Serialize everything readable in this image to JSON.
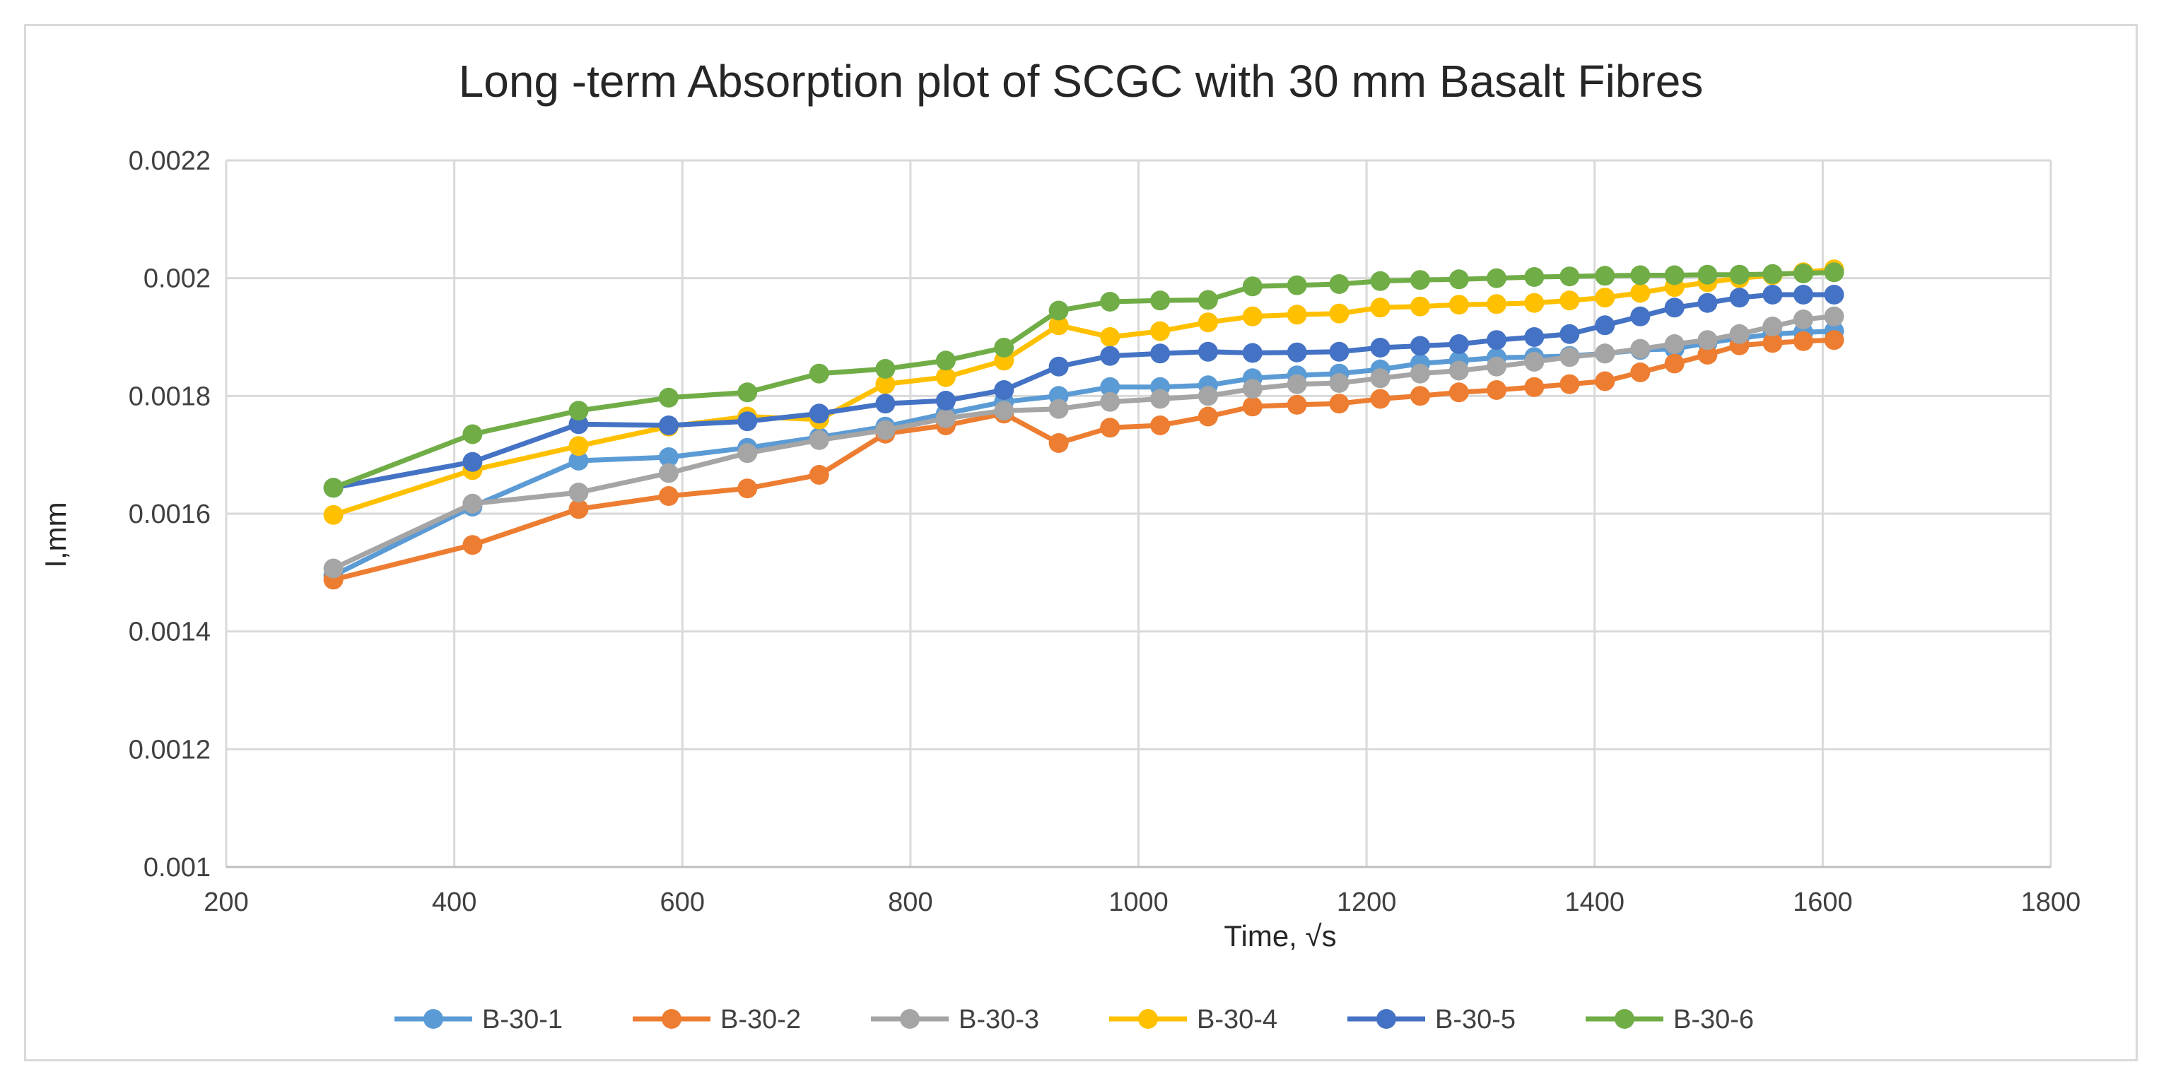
{
  "chart_data": {
    "type": "line",
    "title": "Long -term Absorption plot of SCGC with 30 mm Basalt Fibres",
    "xlabel": "Time, √s",
    "ylabel": "I,mm",
    "xlim": [
      200,
      1800
    ],
    "ylim": [
      0.001,
      0.0022
    ],
    "x_ticks": [
      "200",
      "400",
      "600",
      "800",
      "1000",
      "1200",
      "1400",
      "1600",
      "1800"
    ],
    "y_ticks": [
      "0.001",
      "0.0012",
      "0.0014",
      "0.0016",
      "0.0018",
      "0.002",
      "0.0022"
    ],
    "x_tick_values": [
      200,
      400,
      600,
      800,
      1000,
      1200,
      1400,
      1600,
      1800
    ],
    "y_tick_values": [
      0.001,
      0.0012,
      0.0014,
      0.0016,
      0.0018,
      0.002,
      0.0022
    ],
    "grid": true,
    "legend_position": "bottom",
    "x": [
      294,
      416,
      509,
      588,
      657,
      720,
      778,
      831,
      882,
      930,
      975,
      1019,
      1061,
      1100,
      1139,
      1176,
      1212,
      1247,
      1281,
      1314,
      1347,
      1378,
      1409,
      1440,
      1470,
      1499,
      1527,
      1556,
      1583,
      1610
    ],
    "series": [
      {
        "name": "B-30-1",
        "color": "#5B9BD5",
        "values": [
          0.001495,
          0.001612,
          0.00169,
          0.001696,
          0.001712,
          0.00173,
          0.001748,
          0.00177,
          0.00179,
          0.0018,
          0.001815,
          0.001815,
          0.001818,
          0.00183,
          0.001835,
          0.001838,
          0.001845,
          0.001855,
          0.00186,
          0.001865,
          0.001866,
          0.001868,
          0.001872,
          0.001878,
          0.00188,
          0.00189,
          0.001898,
          0.001905,
          0.001908,
          0.00191
        ]
      },
      {
        "name": "B-30-2",
        "color": "#ED7D31",
        "values": [
          0.001488,
          0.001547,
          0.001608,
          0.00163,
          0.001643,
          0.001666,
          0.001736,
          0.00175,
          0.00177,
          0.00172,
          0.001746,
          0.00175,
          0.001765,
          0.001782,
          0.001785,
          0.001787,
          0.001795,
          0.0018,
          0.001806,
          0.00181,
          0.001815,
          0.00182,
          0.001825,
          0.00184,
          0.001855,
          0.00187,
          0.001886,
          0.00189,
          0.001893,
          0.001895
        ]
      },
      {
        "name": "B-30-3",
        "color": "#A5A5A5",
        "values": [
          0.001507,
          0.001617,
          0.001636,
          0.001669,
          0.001703,
          0.001725,
          0.001742,
          0.001762,
          0.001775,
          0.001778,
          0.00179,
          0.001795,
          0.0018,
          0.001812,
          0.00182,
          0.001822,
          0.00183,
          0.001838,
          0.001843,
          0.00185,
          0.001858,
          0.001866,
          0.001872,
          0.00188,
          0.001888,
          0.001895,
          0.001905,
          0.001918,
          0.00193,
          0.001935
        ]
      },
      {
        "name": "B-30-4",
        "color": "#FFC000",
        "values": [
          0.001598,
          0.001674,
          0.001715,
          0.001748,
          0.001765,
          0.00176,
          0.00182,
          0.001832,
          0.00186,
          0.00192,
          0.0019,
          0.00191,
          0.001925,
          0.001935,
          0.001938,
          0.00194,
          0.00195,
          0.001952,
          0.001955,
          0.001956,
          0.001958,
          0.001962,
          0.001967,
          0.001975,
          0.001985,
          0.001993,
          0.002,
          0.002005,
          0.00201,
          0.002015
        ]
      },
      {
        "name": "B-30-5",
        "color": "#4472C4",
        "values": [
          0.001644,
          0.001688,
          0.001752,
          0.00175,
          0.001757,
          0.00177,
          0.001787,
          0.001792,
          0.00181,
          0.00185,
          0.001868,
          0.001872,
          0.001875,
          0.001873,
          0.001874,
          0.001875,
          0.001882,
          0.001885,
          0.001888,
          0.001895,
          0.0019,
          0.001905,
          0.00192,
          0.001935,
          0.00195,
          0.001958,
          0.001967,
          0.001972,
          0.001972,
          0.001972
        ]
      },
      {
        "name": "B-30-6",
        "color": "#70AD47",
        "values": [
          0.001644,
          0.001735,
          0.001775,
          0.001797,
          0.001806,
          0.001838,
          0.001846,
          0.00186,
          0.001882,
          0.001945,
          0.00196,
          0.001962,
          0.001963,
          0.001986,
          0.001988,
          0.00199,
          0.001995,
          0.001997,
          0.001998,
          0.002,
          0.002002,
          0.002003,
          0.002004,
          0.002005,
          0.002005,
          0.002006,
          0.002006,
          0.002007,
          0.002008,
          0.00201
        ]
      }
    ]
  }
}
